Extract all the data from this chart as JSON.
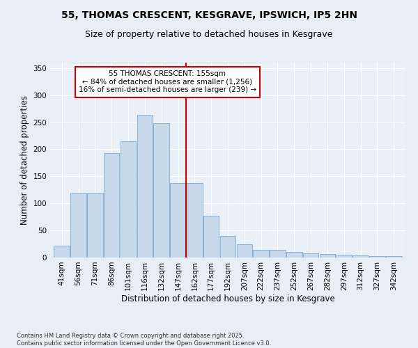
{
  "title": "55, THOMAS CRESCENT, KESGRAVE, IPSWICH, IP5 2HN",
  "subtitle": "Size of property relative to detached houses in Kesgrave",
  "xlabel": "Distribution of detached houses by size in Kesgrave",
  "ylabel": "Number of detached properties",
  "categories": [
    "41sqm",
    "56sqm",
    "71sqm",
    "86sqm",
    "101sqm",
    "116sqm",
    "132sqm",
    "147sqm",
    "162sqm",
    "177sqm",
    "192sqm",
    "207sqm",
    "222sqm",
    "237sqm",
    "252sqm",
    "267sqm",
    "282sqm",
    "297sqm",
    "312sqm",
    "327sqm",
    "342sqm"
  ],
  "values": [
    22,
    120,
    120,
    193,
    215,
    263,
    248,
    137,
    137,
    77,
    40,
    25,
    14,
    14,
    10,
    8,
    7,
    5,
    4,
    2,
    2
  ],
  "bar_color": "#c8d9eb",
  "bar_edge_color": "#7aa8cc",
  "vline_color": "#cc0000",
  "ylim": [
    0,
    360
  ],
  "yticks": [
    0,
    50,
    100,
    150,
    200,
    250,
    300,
    350
  ],
  "annotation_title": "55 THOMAS CRESCENT: 155sqm",
  "annotation_line1": "← 84% of detached houses are smaller (1,256)",
  "annotation_line2": "16% of semi-detached houses are larger (239) →",
  "annotation_box_color": "#ffffff",
  "annotation_box_edge_color": "#cc0000",
  "title_fontsize": 10,
  "subtitle_fontsize": 9,
  "tick_fontsize": 7.5,
  "label_fontsize": 8.5,
  "annotation_fontsize": 7.5,
  "footer_line1": "Contains HM Land Registry data © Crown copyright and database right 2025.",
  "footer_line2": "Contains public sector information licensed under the Open Government Licence v3.0.",
  "bg_color": "#e8eef5",
  "plot_bg_color": "#eaf0f7"
}
